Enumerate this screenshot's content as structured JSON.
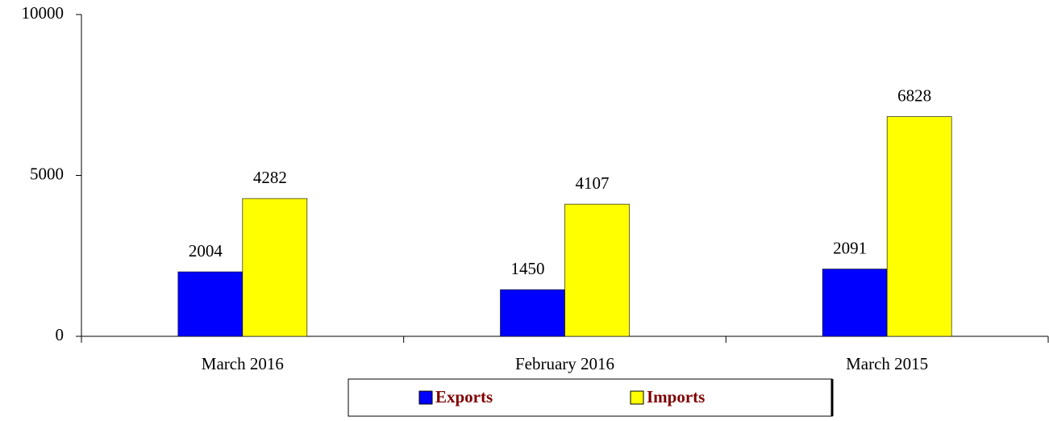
{
  "chart_data": {
    "type": "bar",
    "categories": [
      "March 2016",
      "February 2016",
      "March 2015"
    ],
    "series": [
      {
        "name": "Exports",
        "color": "#0000ff",
        "values": [
          2004,
          1450,
          2091
        ]
      },
      {
        "name": "Imports",
        "color": "#ffff00",
        "values": [
          4282,
          4107,
          6828
        ]
      }
    ],
    "ylim": [
      0,
      10000
    ],
    "yticks": [
      0,
      5000,
      10000
    ],
    "grid": false,
    "legend": "bottom"
  }
}
